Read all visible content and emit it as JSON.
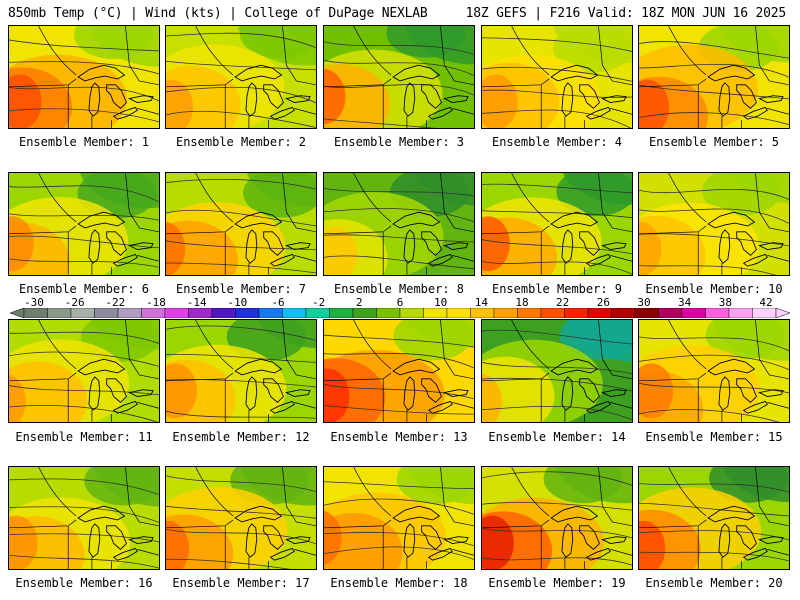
{
  "header": {
    "left": "850mb Temp (°C) | Wind (kts) | College of DuPage NEXLAB",
    "right": "18Z GEFS | F216 Valid: 18Z MON JUN 16 2025"
  },
  "panels": [
    {
      "label": "Ensemble Member: 1",
      "palette": [
        "#9cd600",
        "#f0e400",
        "#ffb000",
        "#ff7a00",
        "#ff4d00"
      ]
    },
    {
      "label": "Ensemble Member: 2",
      "palette": [
        "#7ec800",
        "#c8e000",
        "#f0e400",
        "#ffc400",
        "#ff9c00"
      ]
    },
    {
      "label": "Ensemble Member: 3",
      "palette": [
        "#2f9a2a",
        "#70c000",
        "#d6e000",
        "#ffb000",
        "#ff6000"
      ]
    },
    {
      "label": "Ensemble Member: 4",
      "palette": [
        "#b8dc00",
        "#e6e400",
        "#ffe000",
        "#ffc000",
        "#ff9800"
      ]
    },
    {
      "label": "Ensemble Member: 5",
      "palette": [
        "#9cd600",
        "#f0e400",
        "#ffbc00",
        "#ff8800",
        "#ff5000"
      ]
    },
    {
      "label": "Ensemble Member: 6",
      "palette": [
        "#48a81e",
        "#9cd600",
        "#f0e400",
        "#ffb400",
        "#ff8a00"
      ]
    },
    {
      "label": "Ensemble Member: 7",
      "palette": [
        "#5cb410",
        "#b8dc00",
        "#ffd400",
        "#ffa000",
        "#ff7000"
      ]
    },
    {
      "label": "Ensemble Member: 8",
      "palette": [
        "#2f8e2a",
        "#62b410",
        "#a6d800",
        "#e6e400",
        "#ffc800"
      ]
    },
    {
      "label": "Ensemble Member: 9",
      "palette": [
        "#2f9a2a",
        "#9cd600",
        "#f0e400",
        "#ffaa00",
        "#ff5a00"
      ]
    },
    {
      "label": "Ensemble Member: 10",
      "palette": [
        "#9cd600",
        "#d2e000",
        "#ffe400",
        "#ffc400",
        "#ffa200"
      ]
    },
    {
      "label": "Ensemble Member: 11",
      "palette": [
        "#7ec800",
        "#b0dc00",
        "#f0e400",
        "#ffc000",
        "#ff9800"
      ]
    },
    {
      "label": "Ensemble Member: 12",
      "palette": [
        "#3ea020",
        "#9cd600",
        "#f0e400",
        "#ffc000",
        "#ff9000"
      ]
    },
    {
      "label": "Ensemble Member: 13",
      "palette": [
        "#9cd600",
        "#ffd800",
        "#ff9c00",
        "#ff6400",
        "#ff3000"
      ]
    },
    {
      "label": "Ensemble Member: 14",
      "palette": [
        "#13a890",
        "#3ea020",
        "#9cd600",
        "#f0e400",
        "#ffb000"
      ]
    },
    {
      "label": "Ensemble Member: 15",
      "palette": [
        "#9cd600",
        "#e6e400",
        "#ffd000",
        "#ffa400",
        "#ff7a00"
      ]
    },
    {
      "label": "Ensemble Member: 16",
      "palette": [
        "#62b410",
        "#b8dc00",
        "#f0e400",
        "#ffb800",
        "#ff9000"
      ]
    },
    {
      "label": "Ensemble Member: 17",
      "palette": [
        "#62b410",
        "#c4de00",
        "#ffd000",
        "#ff9c00",
        "#ff6a00"
      ]
    },
    {
      "label": "Ensemble Member: 18",
      "palette": [
        "#9cd600",
        "#f0e400",
        "#ffc400",
        "#ff9800",
        "#ff7000"
      ]
    },
    {
      "label": "Ensemble Member: 19",
      "palette": [
        "#62b410",
        "#d6e000",
        "#ffb000",
        "#ff6000",
        "#e81e00"
      ]
    },
    {
      "label": "Ensemble Member: 20",
      "palette": [
        "#2f8e2a",
        "#9cd600",
        "#ffd000",
        "#ff8a00",
        "#ff4a00"
      ]
    }
  ],
  "colorbar": {
    "labels": [
      "-30",
      "-26",
      "-22",
      "-18",
      "-14",
      "-10",
      "-6",
      "-2",
      "2",
      "6",
      "10",
      "14",
      "18",
      "22",
      "26",
      "30",
      "34",
      "38",
      "42"
    ],
    "colors": [
      "#6e7e6e",
      "#8a9a8a",
      "#a6b0a6",
      "#8c8c9e",
      "#b09cc0",
      "#d070d8",
      "#e040e8",
      "#a028c8",
      "#5018c0",
      "#2030e0",
      "#1878f0",
      "#10c0f0",
      "#10d0a0",
      "#20b040",
      "#40a020",
      "#78c000",
      "#b8d800",
      "#f0e400",
      "#ffe000",
      "#ffc000",
      "#ffa000",
      "#ff7800",
      "#ff5000",
      "#ff2000",
      "#e00000",
      "#b00000",
      "#8a0000",
      "#b00060",
      "#e000a0",
      "#ff60e0",
      "#ffa0f0",
      "#ffd0ff"
    ]
  }
}
